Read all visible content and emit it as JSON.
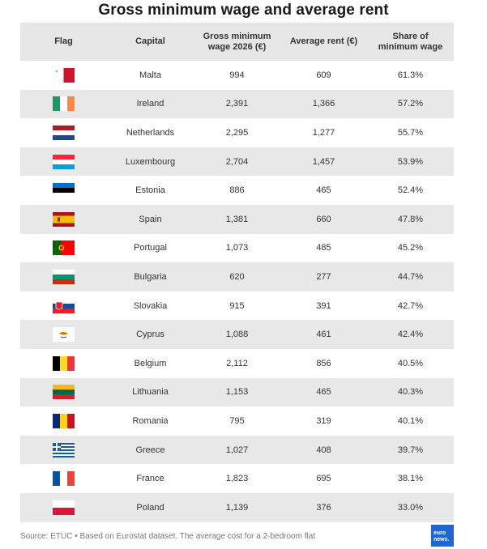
{
  "title": "Gross minimum wage and average rent",
  "chart_data": {
    "type": "table",
    "title": "Gross minimum wage and average rent",
    "columns": [
      "Flag",
      "Capital",
      "Gross minimum wage 2026 (€)",
      "Average rent (€)",
      "Share of minimum wage"
    ],
    "column_lines": [
      [
        "Flag"
      ],
      [
        "Capital"
      ],
      [
        "Gross minimum",
        "wage 2026 (€)"
      ],
      [
        "Average rent (€)"
      ],
      [
        "Share of",
        "minimum wage"
      ]
    ],
    "rows": [
      {
        "flag": "mt-flag",
        "capital": "Malta",
        "wage": "994",
        "rent": "609",
        "share": "61.3%"
      },
      {
        "flag": "ie-flag",
        "capital": "Ireland",
        "wage": "2,391",
        "rent": "1,366",
        "share": "57.2%"
      },
      {
        "flag": "nl-flag",
        "capital": "Netherlands",
        "wage": "2,295",
        "rent": "1,277",
        "share": "55.7%"
      },
      {
        "flag": "lu-flag",
        "capital": "Luxembourg",
        "wage": "2,704",
        "rent": "1,457",
        "share": "53.9%"
      },
      {
        "flag": "ee-flag",
        "capital": "Estonia",
        "wage": "886",
        "rent": "465",
        "share": "52.4%"
      },
      {
        "flag": "es-flag",
        "capital": "Spain",
        "wage": "1,381",
        "rent": "660",
        "share": "47.8%"
      },
      {
        "flag": "pt-flag",
        "capital": "Portugal",
        "wage": "1,073",
        "rent": "485",
        "share": "45.2%"
      },
      {
        "flag": "bg-flag",
        "capital": "Bulgaria",
        "wage": "620",
        "rent": "277",
        "share": "44.7%"
      },
      {
        "flag": "sk-flag",
        "capital": "Slovakia",
        "wage": "915",
        "rent": "391",
        "share": "42.7%"
      },
      {
        "flag": "cy-flag",
        "capital": "Cyprus",
        "wage": "1,088",
        "rent": "461",
        "share": "42.4%"
      },
      {
        "flag": "be-flag",
        "capital": "Belgium",
        "wage": "2,112",
        "rent": "856",
        "share": "40.5%"
      },
      {
        "flag": "lt-flag",
        "capital": "Lithuania",
        "wage": "1,153",
        "rent": "465",
        "share": "40.3%"
      },
      {
        "flag": "ro-flag",
        "capital": "Romania",
        "wage": "795",
        "rent": "319",
        "share": "40.1%"
      },
      {
        "flag": "gr-flag",
        "capital": "Greece",
        "wage": "1,027",
        "rent": "408",
        "share": "39.7%"
      },
      {
        "flag": "fr-flag",
        "capital": "France",
        "wage": "1,823",
        "rent": "695",
        "share": "38.1%"
      },
      {
        "flag": "pl-flag",
        "capital": "Poland",
        "wage": "1,139",
        "rent": "376",
        "share": "33.0%"
      }
    ]
  },
  "source": "Source: ETUC • Based on Eurostat dataset. The average cost for a 2-bedroom flat",
  "logo": {
    "line1": "euro",
    "line2": "news.",
    "color": "#1e67d3"
  },
  "colors": {
    "header_bg": "#e6e6e6",
    "stripe_bg": "#e8e8e8",
    "text": "#333333"
  }
}
